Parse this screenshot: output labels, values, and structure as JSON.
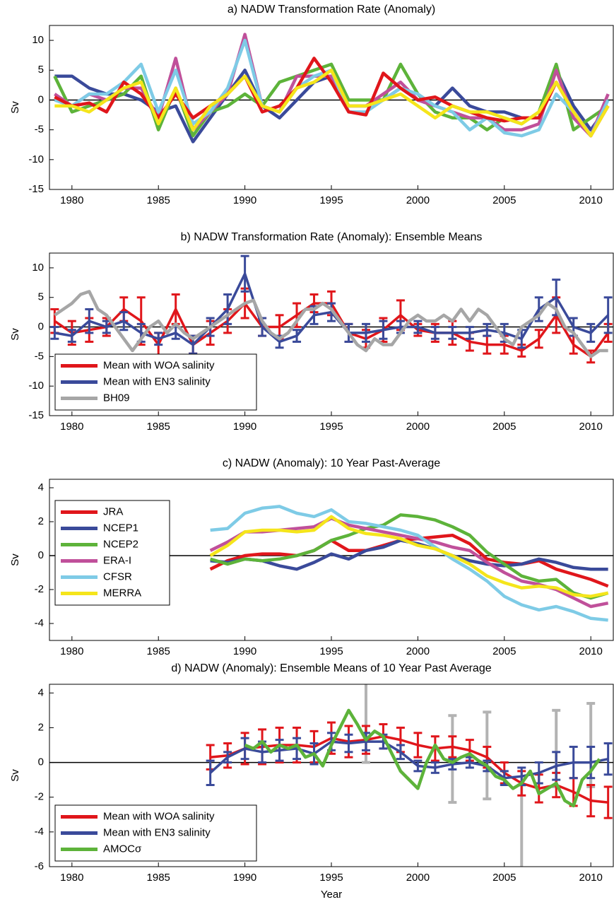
{
  "chart_data": [
    {
      "type": "line",
      "title": "a) NADW Transformation Rate (Anomaly)",
      "ylabel": "Sv",
      "xlim": [
        1978.7,
        2011.3
      ],
      "ylim": [
        -15,
        12.5
      ],
      "xticks": [
        1980,
        1985,
        1990,
        1995,
        2000,
        2005,
        2010
      ],
      "yticks": [
        -15,
        -10,
        -5,
        0,
        5,
        10
      ],
      "zero_line": true,
      "x": [
        1979,
        1980,
        1981,
        1982,
        1983,
        1984,
        1985,
        1986,
        1987,
        1988,
        1989,
        1990,
        1991,
        1992,
        1993,
        1994,
        1995,
        1996,
        1997,
        1998,
        1999,
        2000,
        2001,
        2002,
        2003,
        2004,
        2005,
        2006,
        2007,
        2008,
        2009,
        2010,
        2011
      ],
      "series": [
        {
          "name": "NCEP1",
          "color": "#3a4a9a",
          "values": [
            4,
            4,
            2,
            1,
            1,
            0,
            -2,
            -1,
            -7,
            -3,
            1,
            5,
            -1,
            -3,
            0,
            3,
            4,
            -1,
            -1,
            0,
            2,
            0,
            -1,
            2,
            -1,
            -2,
            -2,
            -3,
            -3,
            5,
            -1,
            -5,
            -1
          ]
        },
        {
          "name": "NCEP2",
          "color": "#5db33a",
          "values": [
            4,
            -2,
            -1,
            0,
            1,
            4,
            -5,
            2,
            -6,
            -2,
            -1,
            1,
            -1,
            3,
            4,
            5,
            6,
            0,
            0,
            0,
            6,
            1,
            -2,
            -3,
            -3,
            -5,
            -3,
            -4,
            -2,
            6,
            -5,
            -3,
            -1
          ]
        },
        {
          "name": "ERA-I",
          "color": "#c0509a",
          "values": [
            1,
            -1,
            1,
            0,
            2,
            2,
            -3,
            7,
            -5,
            -2,
            1,
            11,
            -1,
            -2,
            4,
            4,
            4,
            -1,
            -1,
            1,
            3,
            0,
            -1,
            -2,
            -3,
            -3,
            -5,
            -5,
            -4,
            5,
            -3,
            -6,
            1
          ]
        },
        {
          "name": "CFSR",
          "color": "#7ecbe6",
          "values": [
            0,
            -1,
            1,
            1,
            3,
            6,
            -2,
            5,
            -4,
            -2,
            2,
            10,
            -1,
            -2,
            2,
            4,
            5,
            -2,
            -2,
            0,
            2,
            1,
            -1,
            -2,
            -5,
            -3,
            -5.5,
            -6,
            -5,
            1,
            -2,
            -6,
            0
          ]
        },
        {
          "name": "JRA",
          "color": "#e0161b",
          "values": [
            0.5,
            -1,
            -0.5,
            -2,
            3,
            1,
            -3,
            1,
            -3,
            -1,
            1,
            4,
            -2,
            -1,
            2,
            7,
            3,
            -2,
            -2.5,
            4.5,
            2,
            0,
            0.5,
            -1,
            -2,
            -3,
            -3.5,
            -3,
            -3,
            3,
            -2,
            -6,
            -1
          ]
        },
        {
          "name": "MERRA",
          "color": "#f5e51b",
          "values": [
            -1,
            -1,
            -2,
            0,
            2,
            3,
            -4,
            2,
            -5,
            -1,
            1,
            4,
            -1,
            -2,
            2,
            3,
            5,
            -1,
            -1,
            0,
            1,
            -1,
            -3,
            -1,
            -2,
            -2,
            -3,
            -4,
            -2,
            3,
            -2,
            -6,
            -1
          ]
        }
      ]
    },
    {
      "type": "line",
      "title": "b) NADW Transformation Rate (Anomaly): Ensemble Means",
      "ylabel": "Sv",
      "xlim": [
        1978.7,
        2011.3
      ],
      "ylim": [
        -15,
        12.5
      ],
      "xticks": [
        1980,
        1985,
        1990,
        1995,
        2000,
        2005,
        2010
      ],
      "yticks": [
        -15,
        -10,
        -5,
        0,
        5,
        10
      ],
      "zero_line": true,
      "legend": "lower left",
      "x": [
        1979,
        1980,
        1981,
        1982,
        1983,
        1984,
        1985,
        1986,
        1987,
        1988,
        1989,
        1990,
        1991,
        1992,
        1993,
        1994,
        1995,
        1996,
        1997,
        1998,
        1999,
        2000,
        2001,
        2002,
        2003,
        2004,
        2005,
        2006,
        2007,
        2008,
        2009,
        2010,
        2011
      ],
      "series": [
        {
          "name": "Mean with WOA salinity",
          "color": "#e0161b",
          "values": [
            1,
            -1,
            -0.5,
            0,
            3,
            1,
            -3,
            3,
            -3,
            -1,
            1,
            4,
            0,
            0,
            2,
            4,
            4,
            -1,
            -2,
            -0.5,
            2,
            -0.5,
            -1,
            -1,
            -2.5,
            -3,
            -3,
            -4,
            -2,
            2,
            -3,
            -5,
            -1
          ],
          "errors": [
            2,
            2,
            2,
            1.5,
            2,
            4,
            2,
            2.5,
            1.5,
            2,
            2,
            2.5,
            1.5,
            2,
            2,
            1.5,
            2,
            1.5,
            1.5,
            2,
            2.5,
            1,
            1.5,
            2,
            1.5,
            1.5,
            1.5,
            1,
            1.5,
            3,
            1.5,
            1,
            1.5
          ]
        },
        {
          "name": "Mean with EN3 salinity",
          "color": "#3a4a9a",
          "values": [
            -1,
            -1.5,
            1,
            0,
            1,
            -1,
            -2,
            -1,
            -3,
            0,
            3,
            9,
            0,
            -2.5,
            -1.5,
            2,
            2.5,
            -1,
            -1,
            -0.5,
            0,
            0,
            -1,
            -1,
            -1,
            -0.5,
            -1,
            -2,
            3,
            5,
            0,
            -1,
            2
          ],
          "errors": [
            1,
            1,
            2,
            1,
            1.5,
            1.5,
            1,
            1,
            1.5,
            1.5,
            2.5,
            3,
            1.5,
            1,
            1,
            1.5,
            1.5,
            1.5,
            1.5,
            1.5,
            1,
            1,
            1,
            1,
            1,
            1,
            1.5,
            1.5,
            2,
            3,
            1.5,
            1.5,
            3
          ]
        },
        {
          "name": "BH09",
          "color": "#a6a6a6",
          "x": [
            1979,
            1979.5,
            1980,
            1980.5,
            1981,
            1981.5,
            1982,
            1982.5,
            1983,
            1983.5,
            1984,
            1984.5,
            1985,
            1985.5,
            1986,
            1986.5,
            1987,
            1987.5,
            1988,
            1988.5,
            1989,
            1989.5,
            1990,
            1990.5,
            1991,
            1991.5,
            1992,
            1992.5,
            1993,
            1993.5,
            1994,
            1994.5,
            1995,
            1995.5,
            1996,
            1996.5,
            1997,
            1997.5,
            1998,
            1998.5,
            1999,
            1999.5,
            2000,
            2000.5,
            2001,
            2001.5,
            2002,
            2002.5,
            2003,
            2003.5,
            2004,
            2004.5,
            2005,
            2005.5,
            2006,
            2006.5,
            2007,
            2007.5,
            2008,
            2008.5,
            2009,
            2009.5,
            2010,
            2010.5,
            2011
          ],
          "values": [
            2,
            3,
            4,
            5.5,
            6,
            3,
            2,
            0,
            -2,
            -4,
            -2,
            0,
            1,
            -1,
            0.5,
            -1,
            -2,
            -1,
            0,
            1,
            2,
            3,
            4,
            4.5,
            1,
            -1,
            -2,
            -1,
            1,
            3,
            3,
            4,
            3,
            1,
            -1,
            -3,
            -4,
            -2,
            -3,
            -3,
            -1,
            1,
            2,
            1,
            1,
            2,
            1,
            3,
            1,
            3,
            2,
            0,
            -2,
            -3,
            0,
            1,
            2,
            4,
            3,
            0,
            -1,
            -3,
            -5,
            -4,
            -4
          ]
        }
      ]
    },
    {
      "type": "line",
      "title": "c) NADW (Anomaly): 10 Year Past-Average",
      "ylabel": "Sv",
      "xlim": [
        1978.7,
        2011.3
      ],
      "ylim": [
        -5,
        4.5
      ],
      "xticks": [
        1980,
        1985,
        1990,
        1995,
        2000,
        2005,
        2010
      ],
      "yticks": [
        -4,
        -2,
        0,
        2,
        4
      ],
      "zero_line": true,
      "legend": "center left",
      "x": [
        1988,
        1989,
        1990,
        1991,
        1992,
        1993,
        1994,
        1995,
        1996,
        1997,
        1998,
        1999,
        2000,
        2001,
        2002,
        2003,
        2004,
        2005,
        2006,
        2007,
        2008,
        2009,
        2010,
        2011
      ],
      "series": [
        {
          "name": "JRA",
          "color": "#e0161b",
          "values": [
            -0.8,
            -0.3,
            0,
            0.1,
            0.1,
            0,
            0.3,
            0.9,
            0.3,
            0.3,
            0.6,
            0.9,
            1.0,
            1.1,
            1.2,
            0.7,
            -0.2,
            -0.4,
            -0.5,
            -0.3,
            -0.8,
            -1.1,
            -1.4,
            -1.8
          ]
        },
        {
          "name": "NCEP1",
          "color": "#3a4a9a",
          "values": [
            -0.3,
            -0.4,
            -0.2,
            -0.3,
            -0.6,
            -0.8,
            -0.4,
            0.1,
            -0.2,
            0.3,
            0.5,
            0.9,
            0.7,
            0.4,
            0.0,
            -0.3,
            -0.5,
            -0.6,
            -0.5,
            -0.2,
            -0.4,
            -0.7,
            -0.8,
            -0.8
          ]
        },
        {
          "name": "NCEP2",
          "color": "#5db33a",
          "values": [
            -0.2,
            -0.5,
            -0.2,
            -0.3,
            -0.2,
            0,
            0.3,
            0.9,
            1.2,
            1.6,
            1.8,
            2.4,
            2.3,
            2.1,
            1.7,
            1.2,
            0.2,
            -0.5,
            -1.2,
            -1.5,
            -1.4,
            -2.2,
            -2.5,
            -2.2
          ]
        },
        {
          "name": "ERA-I",
          "color": "#c0509a",
          "values": [
            0.3,
            0.8,
            1.4,
            1.4,
            1.5,
            1.6,
            1.7,
            2.2,
            1.8,
            1.6,
            1.4,
            1.2,
            1.0,
            0.8,
            0.5,
            0.3,
            -0.4,
            -1.0,
            -1.5,
            -1.7,
            -2.0,
            -2.5,
            -3.0,
            -2.8
          ]
        },
        {
          "name": "CFSR",
          "color": "#7ecbe6",
          "values": [
            1.5,
            1.6,
            2.5,
            2.8,
            2.9,
            2.5,
            2.3,
            2.7,
            2.0,
            1.9,
            1.7,
            1.5,
            1.2,
            0.5,
            -0.2,
            -0.8,
            -1.5,
            -2.4,
            -2.9,
            -3.2,
            -3.0,
            -3.3,
            -3.7,
            -3.8
          ]
        },
        {
          "name": "MERRA",
          "color": "#f5e51b",
          "values": [
            0,
            0.6,
            1.4,
            1.5,
            1.5,
            1.4,
            1.5,
            2.3,
            1.6,
            1.3,
            1.2,
            1.0,
            0.6,
            0.4,
            0,
            -0.5,
            -1.2,
            -1.6,
            -1.9,
            -1.8,
            -1.9,
            -2.3,
            -2.4,
            -2.2
          ]
        }
      ]
    },
    {
      "type": "line",
      "title": "d) NADW (Anomaly): Ensemble Means of 10 Year Past Average",
      "ylabel": "Sv",
      "xlabel": "Year",
      "xlim": [
        1978.7,
        2011.3
      ],
      "ylim": [
        -6,
        4.5
      ],
      "xticks": [
        1980,
        1985,
        1990,
        1995,
        2000,
        2005,
        2010
      ],
      "yticks": [
        -6,
        -4,
        -2,
        0,
        2,
        4
      ],
      "zero_line": true,
      "legend": "lower left",
      "x": [
        1988,
        1989,
        1990,
        1991,
        1992,
        1993,
        1994,
        1995,
        1996,
        1997,
        1998,
        1999,
        2000,
        2001,
        2002,
        2003,
        2004,
        2005,
        2006,
        2007,
        2008,
        2009,
        2010,
        2011
      ],
      "markers": {
        "color": "#b3b3b3",
        "x": [
          1997,
          2002,
          2004,
          2006,
          2008,
          2010
        ],
        "values": [
          2.3,
          0.2,
          0.4,
          -4.5,
          0.8,
          1.0
        ],
        "errors": [
          2.3,
          2.5,
          2.5,
          3.2,
          2.2,
          2.4
        ]
      },
      "series": [
        {
          "name": "Mean with WOA salinity",
          "color": "#e0161b",
          "values": [
            0.3,
            0.4,
            0.8,
            0.9,
            1.0,
            1.0,
            0.9,
            1.4,
            1.2,
            1.3,
            1.5,
            1.3,
            1.0,
            0.8,
            0.9,
            0.7,
            0.3,
            -0.6,
            -1.2,
            -1.5,
            -1.3,
            -1.7,
            -2.2,
            -2.3
          ],
          "errors": [
            0.7,
            0.7,
            0.9,
            1.0,
            1.0,
            1.0,
            0.9,
            0.9,
            0.9,
            0.8,
            0.7,
            0.7,
            0.7,
            0.7,
            0.6,
            0.6,
            0.6,
            0.6,
            0.7,
            0.8,
            0.7,
            0.8,
            0.9,
            0.9
          ]
        },
        {
          "name": "Mean with EN3 salinity",
          "color": "#3a4a9a",
          "values": [
            -0.6,
            0.3,
            0.8,
            0.6,
            0.7,
            0.8,
            0.5,
            1.2,
            1.1,
            1.2,
            1.2,
            0.6,
            -0.2,
            -0.3,
            -0.1,
            0,
            -0.2,
            -0.9,
            -0.8,
            -0.6,
            -0.2,
            0,
            0,
            0.2
          ],
          "errors": [
            0.7,
            0.3,
            0.6,
            0.6,
            0.6,
            0.6,
            0.6,
            0.5,
            0.5,
            0.5,
            0.4,
            0.4,
            0.3,
            0.3,
            0.3,
            0.3,
            0.3,
            0.4,
            0.5,
            0.6,
            0.8,
            0.9,
            0.9,
            0.9
          ]
        },
        {
          "name": "AMOCσ",
          "color": "#5db33a",
          "x": [
            1990,
            1990.5,
            1991,
            1991.5,
            1992,
            1992.5,
            1993,
            1993.5,
            1994,
            1994.5,
            1995,
            1995.5,
            1996,
            1996.5,
            1997,
            1997.5,
            1998,
            1998.5,
            1999,
            1999.5,
            2000,
            2000.5,
            2001,
            2001.5,
            2002,
            2002.5,
            2003,
            2003.5,
            2004,
            2004.5,
            2005,
            2005.5,
            2006,
            2006.5,
            2007,
            2007.5,
            2008,
            2008.5,
            2009,
            2009.5,
            2010,
            2010.5
          ],
          "values": [
            1.0,
            0.8,
            1.2,
            0.6,
            1.0,
            0.8,
            1.0,
            0.3,
            0.5,
            -0.2,
            1.0,
            2.0,
            3.0,
            2.2,
            1.3,
            1.8,
            1.5,
            0.5,
            -0.5,
            -1.0,
            -1.5,
            0,
            1.0,
            0.2,
            0,
            0.3,
            0.5,
            0.1,
            -0.2,
            -0.8,
            -1,
            -1.5,
            -1.2,
            -0.5,
            -1.8,
            -1.5,
            -1.2,
            -2.2,
            -2.5,
            -1.0,
            -0.5,
            0.2
          ]
        }
      ]
    }
  ]
}
